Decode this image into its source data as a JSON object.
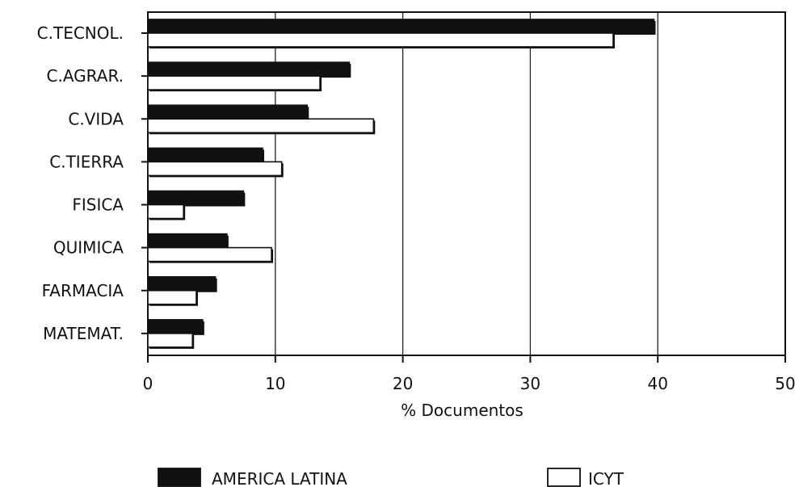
{
  "chart_data": {
    "type": "bar",
    "orientation": "horizontal",
    "categories": [
      "C.TECNOL.",
      "C.AGRAR.",
      "C.VIDA",
      "C.TIERRA",
      "FISICA",
      "QUIMICA",
      "FARMACIA",
      "MATEMAT."
    ],
    "series": [
      {
        "name": "AMERICA LATINA",
        "color": "#111111",
        "values": [
          39.7,
          15.8,
          12.5,
          9.0,
          7.5,
          6.2,
          5.3,
          4.3
        ]
      },
      {
        "name": "ICYT",
        "color": "#ffffff",
        "values": [
          36.5,
          13.5,
          17.7,
          10.5,
          2.8,
          9.7,
          3.8,
          3.5
        ]
      }
    ],
    "xlabel": "% Documentos",
    "xlim": [
      0,
      50
    ],
    "xticks": [
      "0",
      "10",
      "20",
      "30",
      "40",
      "50"
    ],
    "grid": "vertical",
    "legend_position": "bottom"
  }
}
